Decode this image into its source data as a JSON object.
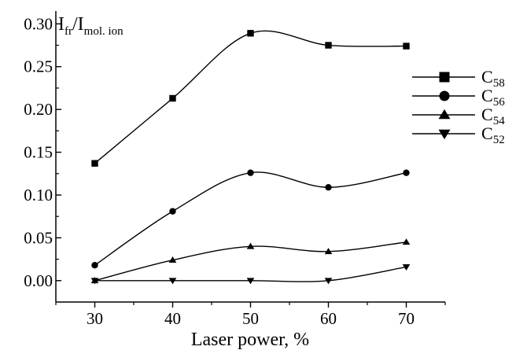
{
  "chart_data": {
    "type": "line",
    "x": [
      30,
      40,
      50,
      60,
      70
    ],
    "xlim": [
      25,
      75
    ],
    "ylim": [
      -0.025,
      0.315
    ],
    "xticks": [
      30,
      40,
      50,
      60,
      70
    ],
    "yticks": [
      0.0,
      0.05,
      0.1,
      0.15,
      0.2,
      0.25,
      0.3
    ],
    "ytick_labels": [
      "0.00",
      "0.05",
      "0.10",
      "0.15",
      "0.20",
      "0.25",
      "0.30"
    ],
    "xlabel": "Laser power, %",
    "ylabel": {
      "I1": "I",
      "sub1": "fr",
      "slash": "/",
      "I2": "I",
      "sub2": "mol. ion"
    },
    "grid": false,
    "legend_position": "right",
    "series": [
      {
        "name": {
          "base": "C",
          "sub": "58"
        },
        "marker": "square",
        "values": [
          0.137,
          0.213,
          0.289,
          0.275,
          0.274
        ]
      },
      {
        "name": {
          "base": "C",
          "sub": "56"
        },
        "marker": "circle",
        "values": [
          0.018,
          0.081,
          0.126,
          0.109,
          0.126
        ]
      },
      {
        "name": {
          "base": "C",
          "sub": "54"
        },
        "marker": "triangle-up",
        "values": [
          0.0,
          0.024,
          0.04,
          0.034,
          0.045
        ]
      },
      {
        "name": {
          "base": "C",
          "sub": "52"
        },
        "marker": "triangle-down",
        "values": [
          0.0,
          0.0,
          0.0,
          0.0,
          0.016
        ]
      }
    ]
  }
}
